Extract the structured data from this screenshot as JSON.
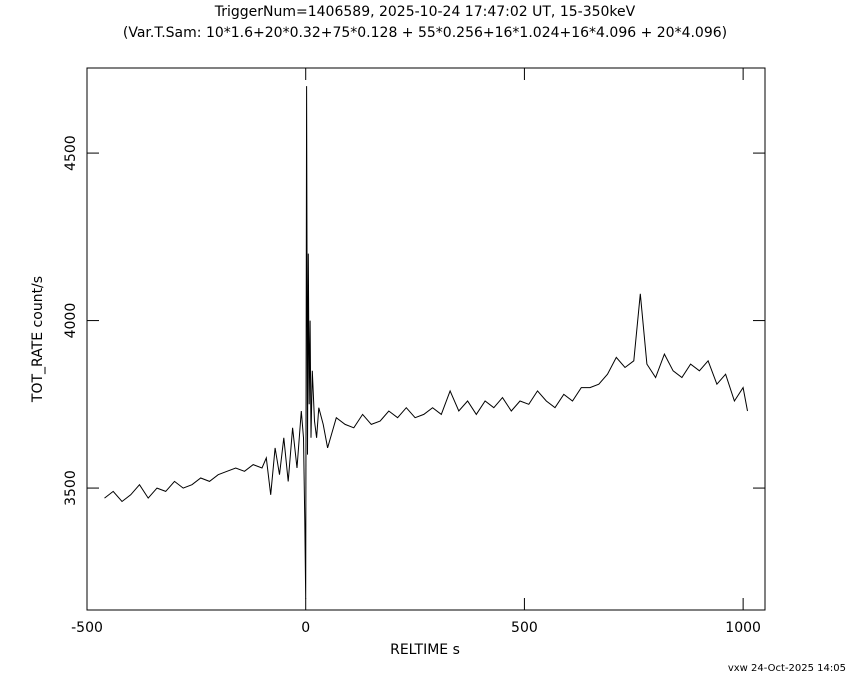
{
  "chart_data": {
    "type": "line",
    "title": "TriggerNum=1406589, 2025-10-24 17:47:02 UT, 15-350keV",
    "subtitle": "(Var.T.Sam: 10*1.6+20*0.32+75*0.128  +  55*0.256+16*1.024+16*4.096  +  20*4.096)",
    "x_label": "RELTIME   s",
    "y_label": "TOT_RATE   count/s",
    "footer": "vxw 24-Oct-2025 14:05",
    "xlim": [
      -500,
      1050
    ],
    "ylim": [
      3136,
      4754
    ],
    "xticks": [
      -500,
      0,
      500,
      1000
    ],
    "yticks": [
      3500,
      4000,
      4500
    ],
    "color": "#000000",
    "x": [
      -460,
      -440,
      -420,
      -400,
      -380,
      -360,
      -340,
      -320,
      -300,
      -280,
      -260,
      -240,
      -220,
      -200,
      -180,
      -160,
      -140,
      -120,
      -100,
      -90,
      -80,
      -70,
      -60,
      -50,
      -40,
      -30,
      -20,
      -10,
      -5,
      -2,
      0,
      2,
      4,
      6,
      8,
      10,
      12,
      15,
      20,
      25,
      30,
      40,
      50,
      70,
      90,
      110,
      130,
      150,
      170,
      190,
      210,
      230,
      250,
      270,
      290,
      310,
      330,
      350,
      370,
      390,
      410,
      430,
      450,
      470,
      490,
      510,
      530,
      550,
      570,
      590,
      610,
      630,
      650,
      670,
      690,
      710,
      730,
      750,
      765,
      780,
      800,
      820,
      840,
      860,
      880,
      900,
      920,
      940,
      960,
      980,
      1000,
      1010
    ],
    "values": [
      3470,
      3490,
      3460,
      3480,
      3510,
      3470,
      3500,
      3490,
      3520,
      3500,
      3510,
      3530,
      3520,
      3540,
      3550,
      3560,
      3550,
      3570,
      3560,
      3590,
      3480,
      3620,
      3540,
      3650,
      3520,
      3680,
      3560,
      3730,
      3650,
      3400,
      3170,
      4700,
      3600,
      4200,
      3750,
      4000,
      3650,
      3850,
      3700,
      3650,
      3740,
      3690,
      3620,
      3710,
      3690,
      3680,
      3720,
      3690,
      3700,
      3730,
      3710,
      3740,
      3710,
      3720,
      3740,
      3720,
      3790,
      3730,
      3760,
      3720,
      3760,
      3740,
      3770,
      3730,
      3760,
      3750,
      3790,
      3760,
      3740,
      3780,
      3760,
      3800,
      3800,
      3810,
      3840,
      3890,
      3860,
      3880,
      4080,
      3870,
      3830,
      3900,
      3850,
      3830,
      3870,
      3850,
      3880,
      3810,
      3840,
      3760,
      3800,
      3730
    ]
  }
}
